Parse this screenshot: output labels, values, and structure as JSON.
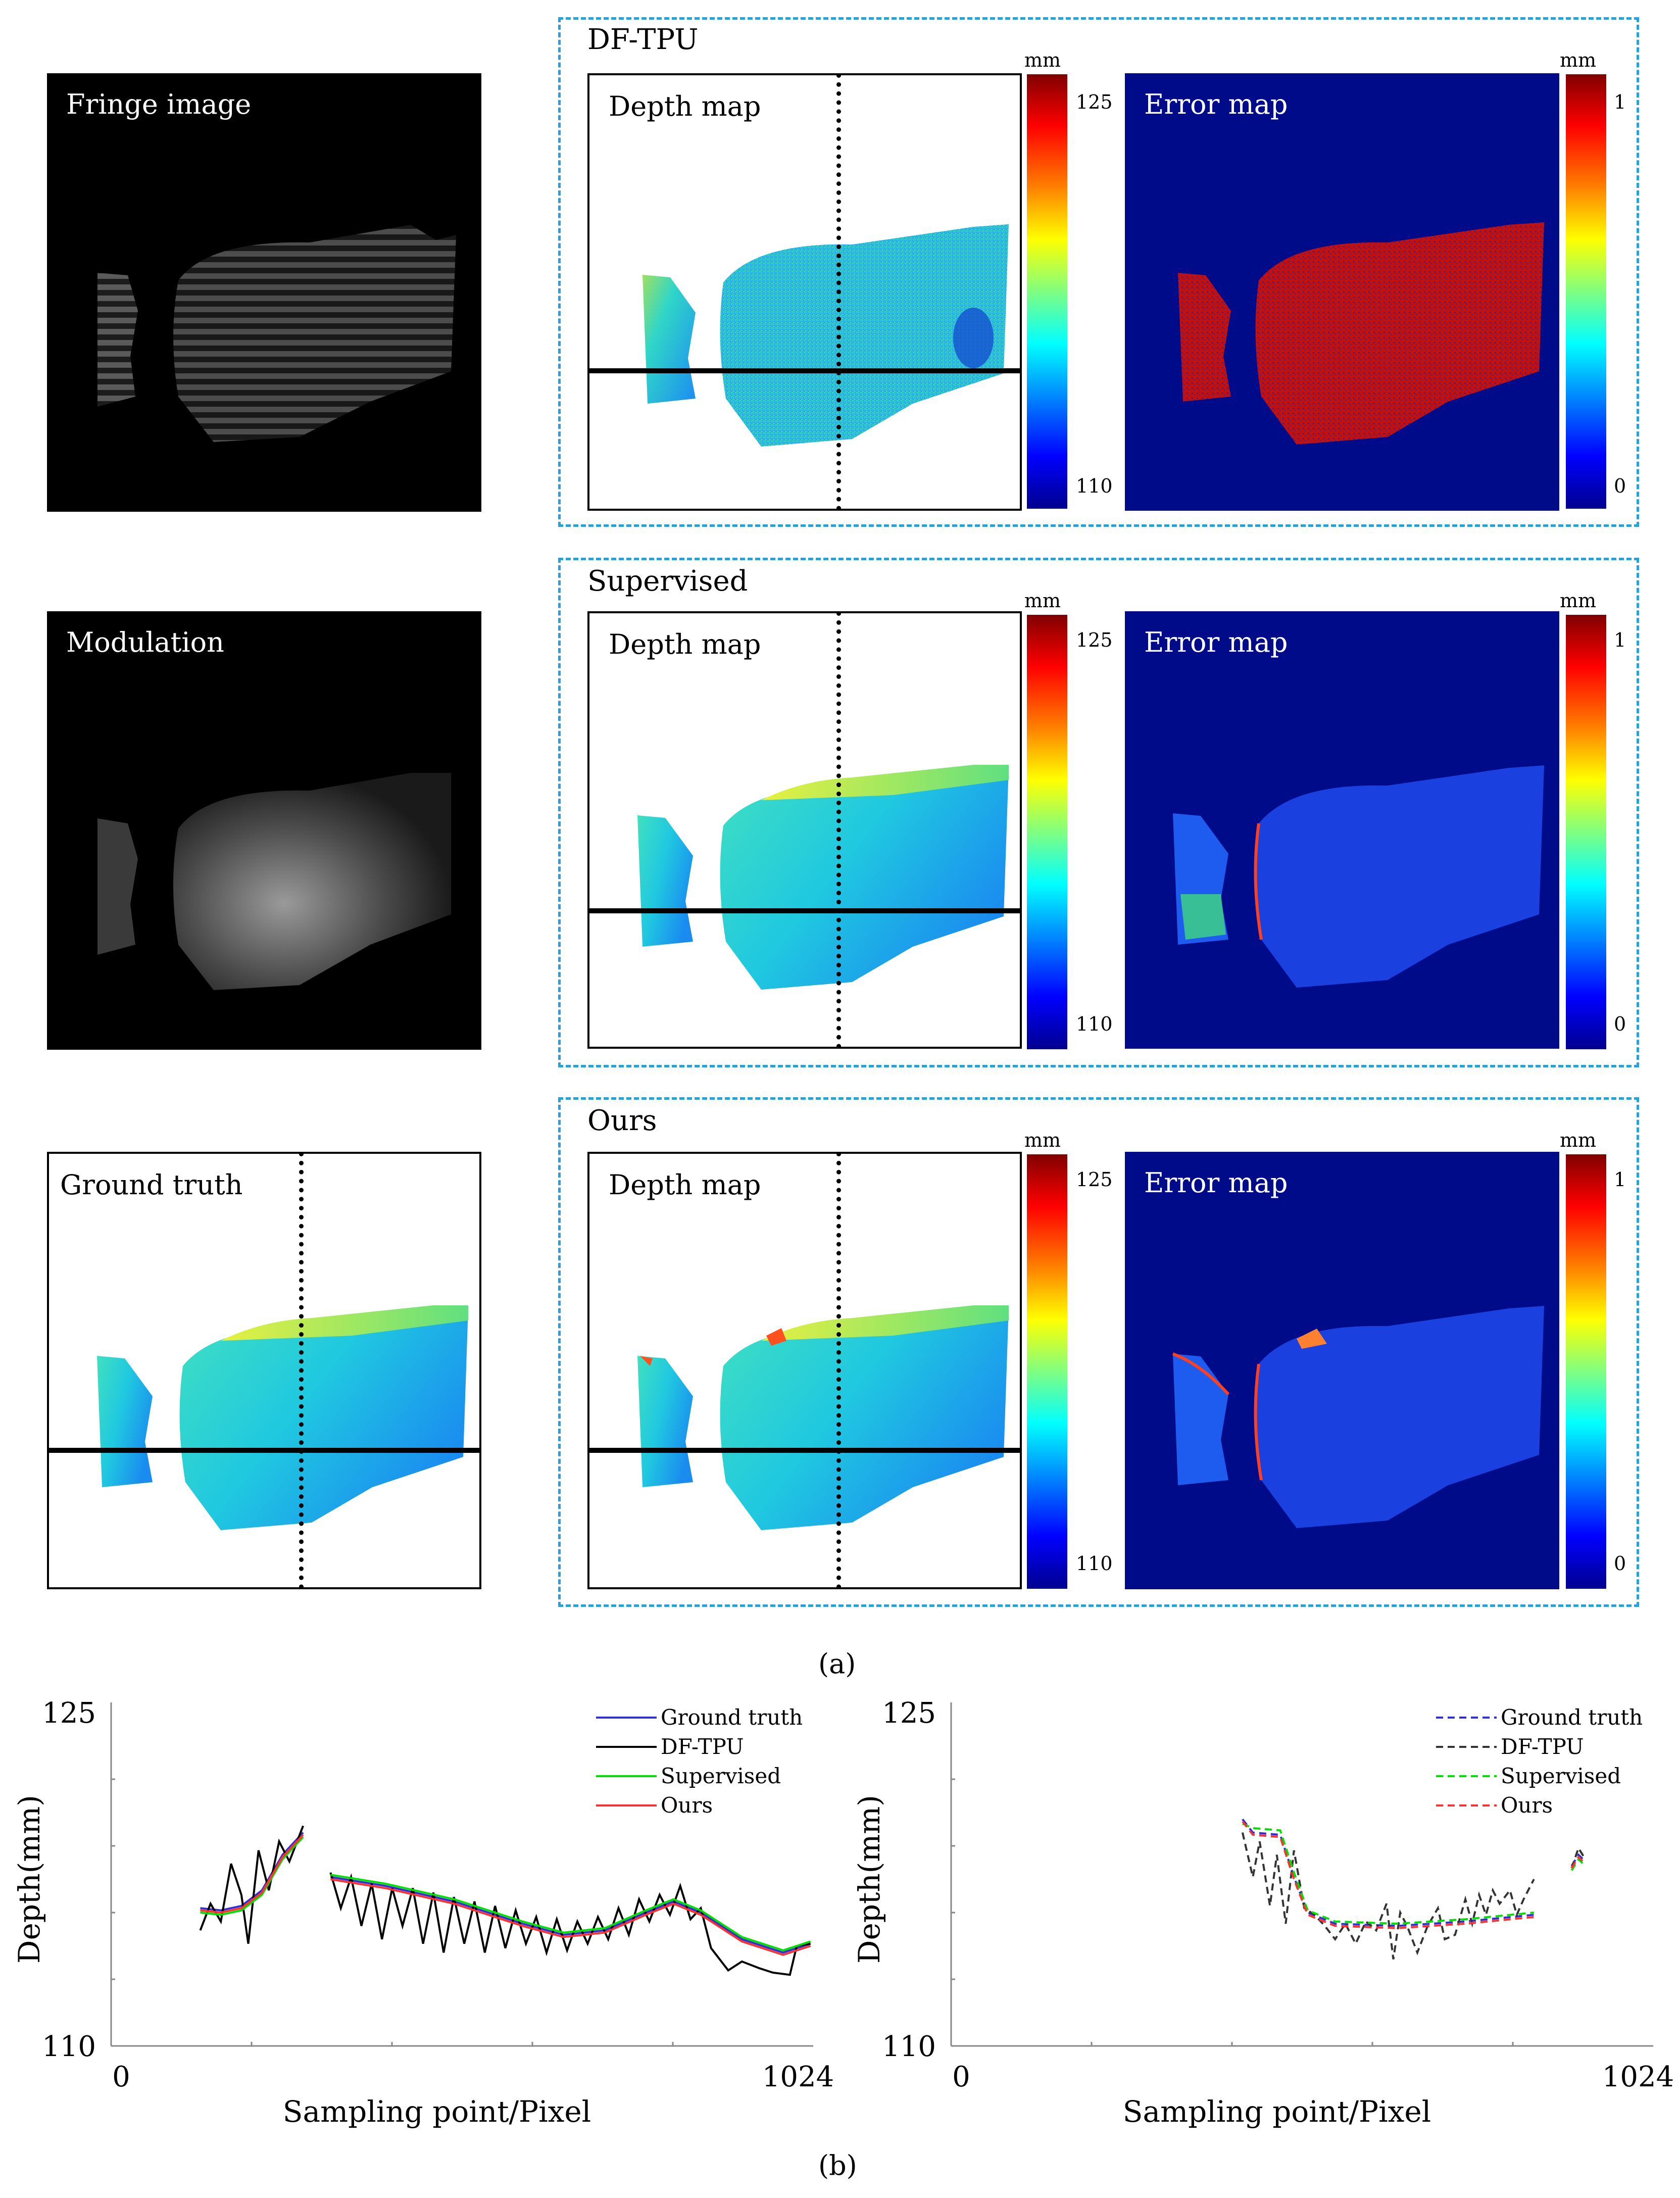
{
  "panels": {
    "fringe_image": "Fringe image",
    "modulation": "Modulation",
    "ground_truth": "Ground truth",
    "depth_map": "Depth map",
    "error_map": "Error map"
  },
  "groups": {
    "dftpu": "DF-TPU",
    "supervised": "Supervised",
    "ours": "Ours"
  },
  "colorbars": {
    "unit": "mm",
    "depth_max": "125",
    "depth_min": "110",
    "error_max": "1",
    "error_min": "0"
  },
  "captions": {
    "a": "(a)",
    "b": "(b)"
  },
  "colors": {
    "dashed_border": "#2a9fd8",
    "error_bg": "#000b8a"
  },
  "chart_data": [
    {
      "type": "line",
      "xlabel": "Sampling point/Pixel",
      "ylabel": "Depth(mm)",
      "xlim": [
        0,
        1024
      ],
      "ylim": [
        110,
        125
      ],
      "ytick_labels": [
        "125",
        "110"
      ],
      "xtick_labels": [
        "0",
        "1024"
      ],
      "legend": [
        "Ground truth",
        "DF-TPU",
        "Supervised",
        "Ours"
      ],
      "legend_position": "top-right",
      "series": [
        {
          "name": "Ground truth",
          "color": "#3030d0",
          "style": "solid",
          "segments": [
            [
              [
                130,
                116.2
              ],
              [
                160,
                116.1
              ],
              [
                190,
                116.3
              ],
              [
                220,
                117
              ],
              [
                250,
                118.6
              ],
              [
                280,
                119.6
              ]
            ],
            [
              [
                320,
                117.6
              ],
              [
                400,
                117.2
              ],
              [
                500,
                116.5
              ],
              [
                600,
                115.5
              ],
              [
                660,
                115.0
              ],
              [
                720,
                115.2
              ],
              [
                780,
                116.0
              ],
              [
                820,
                116.5
              ],
              [
                860,
                116.0
              ],
              [
                920,
                114.8
              ],
              [
                980,
                114.2
              ],
              [
                1020,
                114.6
              ]
            ]
          ]
        },
        {
          "name": "DF-TPU",
          "color": "#000000",
          "style": "solid",
          "segments": [
            [
              [
                130,
                115.2
              ],
              [
                145,
                116.4
              ],
              [
                160,
                115.6
              ],
              [
                175,
                118.2
              ],
              [
                190,
                116.8
              ],
              [
                200,
                114.6
              ],
              [
                215,
                118.8
              ],
              [
                230,
                117.0
              ],
              [
                245,
                119.2
              ],
              [
                260,
                118.3
              ],
              [
                280,
                119.9
              ]
            ],
            [
              [
                320,
                117.8
              ],
              [
                335,
                116.2
              ],
              [
                350,
                117.6
              ],
              [
                365,
                115.4
              ],
              [
                380,
                117.3
              ],
              [
                395,
                114.8
              ],
              [
                410,
                117.1
              ],
              [
                425,
                115.4
              ],
              [
                440,
                117.1
              ],
              [
                455,
                114.6
              ],
              [
                470,
                116.9
              ],
              [
                485,
                114.2
              ],
              [
                500,
                116.7
              ],
              [
                515,
                114.6
              ],
              [
                530,
                116.5
              ],
              [
                545,
                114.2
              ],
              [
                560,
                116.3
              ],
              [
                575,
                114.4
              ],
              [
                590,
                116.1
              ],
              [
                605,
                114.6
              ],
              [
                620,
                115.8
              ],
              [
                635,
                114.2
              ],
              [
                650,
                115.7
              ],
              [
                665,
                114.3
              ],
              [
                680,
                115.6
              ],
              [
                695,
                114.6
              ],
              [
                710,
                115.8
              ],
              [
                725,
                114.8
              ],
              [
                740,
                116.2
              ],
              [
                755,
                115.0
              ],
              [
                770,
                116.6
              ],
              [
                785,
                115.6
              ],
              [
                800,
                116.8
              ],
              [
                815,
                115.9
              ],
              [
                830,
                117.2
              ],
              [
                845,
                115.7
              ],
              [
                860,
                116.2
              ],
              [
                875,
                114.4
              ],
              [
                900,
                113.4
              ],
              [
                920,
                113.8
              ],
              [
                945,
                113.5
              ],
              [
                965,
                113.3
              ],
              [
                990,
                113.2
              ],
              [
                1000,
                114.5
              ],
              [
                1020,
                114.6
              ]
            ]
          ]
        },
        {
          "name": "Supervised",
          "color": "#00e000",
          "style": "solid",
          "segments": [
            [
              [
                130,
                116.0
              ],
              [
                160,
                115.9
              ],
              [
                190,
                116.1
              ],
              [
                220,
                116.8
              ],
              [
                250,
                118.4
              ],
              [
                280,
                119.4
              ]
            ],
            [
              [
                320,
                117.7
              ],
              [
                400,
                117.3
              ],
              [
                500,
                116.6
              ],
              [
                600,
                115.6
              ],
              [
                660,
                115.1
              ],
              [
                720,
                115.3
              ],
              [
                780,
                116.1
              ],
              [
                820,
                116.6
              ],
              [
                860,
                116.1
              ],
              [
                920,
                114.9
              ],
              [
                980,
                114.3
              ],
              [
                1020,
                114.7
              ]
            ]
          ]
        },
        {
          "name": "Ours",
          "color": "#ff3030",
          "style": "solid",
          "segments": [
            [
              [
                130,
                116.1
              ],
              [
                160,
                116.0
              ],
              [
                190,
                116.2
              ],
              [
                220,
                116.9
              ],
              [
                250,
                118.5
              ],
              [
                280,
                119.5
              ]
            ],
            [
              [
                320,
                117.5
              ],
              [
                400,
                117.1
              ],
              [
                500,
                116.4
              ],
              [
                600,
                115.4
              ],
              [
                660,
                114.9
              ],
              [
                720,
                115.1
              ],
              [
                780,
                115.9
              ],
              [
                820,
                116.4
              ],
              [
                860,
                115.9
              ],
              [
                920,
                114.7
              ],
              [
                980,
                114.1
              ],
              [
                1020,
                114.5
              ]
            ]
          ]
        }
      ]
    },
    {
      "type": "line",
      "xlabel": "Sampling point/Pixel",
      "ylabel": "Depth(mm)",
      "xlim": [
        0,
        1024
      ],
      "ylim": [
        110,
        125
      ],
      "ytick_labels": [
        "125",
        "110"
      ],
      "xtick_labels": [
        "0",
        "1024"
      ],
      "legend": [
        "Ground truth",
        "DF-TPU",
        "Supervised",
        "Ours"
      ],
      "legend_position": "top-right",
      "series": [
        {
          "name": "Ground truth",
          "color": "#3030d0",
          "style": "dashed",
          "segments": [
            [
              [
                425,
                120.2
              ],
              [
                440,
                119.6
              ],
              [
                480,
                119.5
              ],
              [
                500,
                117.6
              ],
              [
                520,
                116.0
              ],
              [
                560,
                115.5
              ],
              [
                650,
                115.4
              ],
              [
                750,
                115.6
              ],
              [
                850,
                115.9
              ]
            ],
            [
              [
                905,
                118.1
              ],
              [
                915,
                118.6
              ],
              [
                925,
                118.3
              ]
            ]
          ]
        },
        {
          "name": "DF-TPU",
          "color": "#333333",
          "style": "dashed",
          "segments": [
            [
              [
                425,
                119.6
              ],
              [
                440,
                117.6
              ],
              [
                450,
                119.2
              ],
              [
                465,
                116.3
              ],
              [
                475,
                118.6
              ],
              [
                488,
                115.5
              ],
              [
                500,
                118.8
              ],
              [
                515,
                116.2
              ],
              [
                530,
                115.9
              ],
              [
                545,
                115.4
              ],
              [
                560,
                114.8
              ],
              [
                575,
                115.5
              ],
              [
                590,
                114.6
              ],
              [
                605,
                115.6
              ],
              [
                620,
                115.2
              ],
              [
                635,
                116.4
              ],
              [
                645,
                113.9
              ],
              [
                655,
                116.0
              ],
              [
                665,
                115.4
              ],
              [
                680,
                114.2
              ],
              [
                695,
                115.4
              ],
              [
                710,
                116.2
              ],
              [
                720,
                114.8
              ],
              [
                735,
                115.0
              ],
              [
                750,
                116.6
              ],
              [
                760,
                115.5
              ],
              [
                770,
                116.8
              ],
              [
                780,
                115.9
              ],
              [
                790,
                117.0
              ],
              [
                800,
                116.4
              ],
              [
                815,
                117.0
              ],
              [
                825,
                115.9
              ],
              [
                835,
                116.6
              ],
              [
                850,
                117.5
              ]
            ],
            [
              [
                905,
                118.0
              ],
              [
                915,
                118.9
              ],
              [
                925,
                118.4
              ]
            ]
          ]
        },
        {
          "name": "Supervised",
          "color": "#00e000",
          "style": "dashed",
          "segments": [
            [
              [
                425,
                120.0
              ],
              [
                440,
                119.8
              ],
              [
                480,
                119.7
              ],
              [
                500,
                117.8
              ],
              [
                520,
                116.1
              ],
              [
                560,
                115.6
              ],
              [
                650,
                115.5
              ],
              [
                750,
                115.7
              ],
              [
                850,
                116.0
              ]
            ],
            [
              [
                905,
                117.9
              ],
              [
                915,
                118.4
              ],
              [
                925,
                118.1
              ]
            ]
          ]
        },
        {
          "name": "Ours",
          "color": "#ff3030",
          "style": "dashed",
          "segments": [
            [
              [
                425,
                120.1
              ],
              [
                440,
                119.5
              ],
              [
                480,
                119.4
              ],
              [
                500,
                117.5
              ],
              [
                520,
                115.9
              ],
              [
                560,
                115.4
              ],
              [
                650,
                115.3
              ],
              [
                750,
                115.5
              ],
              [
                850,
                115.8
              ]
            ],
            [
              [
                905,
                118.0
              ],
              [
                915,
                118.5
              ],
              [
                925,
                118.2
              ]
            ]
          ]
        }
      ]
    }
  ]
}
